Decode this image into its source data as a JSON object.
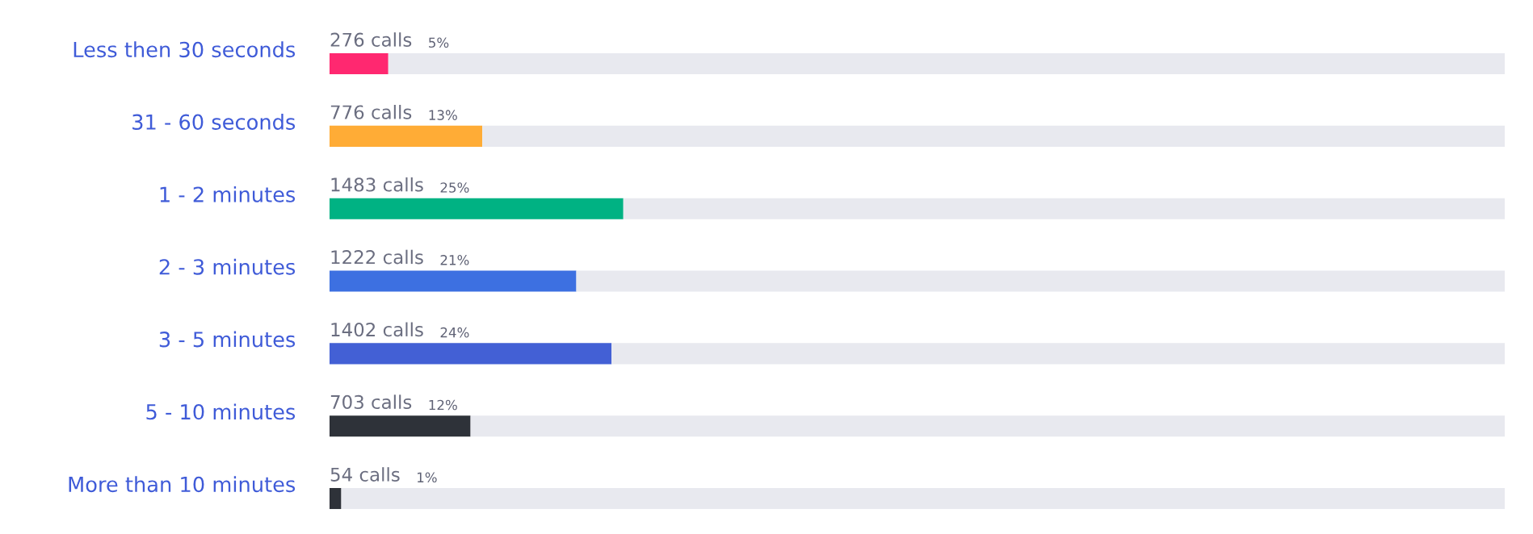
{
  "chart_data": {
    "type": "bar",
    "orientation": "horizontal",
    "stacked": true,
    "categories": [
      "Less then 30 seconds",
      "31 - 60 seconds",
      "1 - 2 minutes",
      "2 - 3 minutes",
      "3 - 5 minutes",
      "5 - 10 minutes",
      "More than 10 minutes"
    ],
    "series": [
      {
        "colors": [
          "#ff2870",
          "#ffac36",
          "#00b283",
          "#3d70e1",
          "#4360d5",
          "#2e3239",
          "#2e3239"
        ],
        "values": [
          5,
          13,
          25,
          21,
          24,
          12,
          1
        ],
        "value_labels": [
          "5%",
          "13%",
          "25%",
          "21%",
          "24%",
          "12%",
          null
        ]
      },
      {
        "color": "#e8e9ef",
        "values": [
          95,
          87,
          75,
          79,
          76,
          88,
          99
        ]
      }
    ],
    "xlim": [
      0,
      100
    ],
    "tick_labels": "y",
    "annotations": [
      {
        "text": "276 calls",
        "y": "Less then 30 seconds"
      },
      {
        "text": "776 calls",
        "y": "31 - 60 seconds"
      },
      {
        "text": "1483 calls",
        "y": "1 - 2 minutes"
      },
      {
        "text": "1222 calls",
        "y": "2 - 3 minutes"
      },
      {
        "text": "1402 calls",
        "y": "3 - 5 minutes"
      },
      {
        "text": "703 calls",
        "y": "5 - 10 minutes"
      },
      {
        "text": "54 calls",
        "y": "More than 10 minutes"
      },
      {
        "text": "1%",
        "y": "More than 10 minutes"
      }
    ]
  }
}
